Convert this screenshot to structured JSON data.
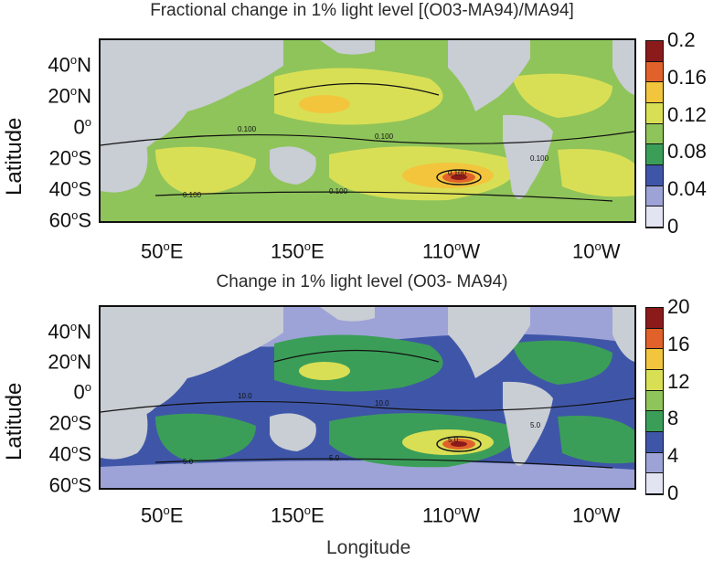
{
  "panels": [
    {
      "title": "Fractional change in 1% light level [(O03-MA94)/MA94]",
      "colorbar_labels": [
        "0.2",
        "0.16",
        "0.12",
        "0.08",
        "0.04",
        "0"
      ],
      "contour_labels": [
        "0.100",
        "0.100",
        "0.100",
        "0.100",
        "0.100",
        "0.100"
      ]
    },
    {
      "title": "Change in 1% light level (O03- MA94)",
      "colorbar_labels": [
        "20",
        "16",
        "12",
        "8",
        "4",
        "0"
      ],
      "contour_labels": [
        "10.0",
        "10.0",
        "5.0",
        "5.0",
        "5.0",
        "5.0"
      ]
    }
  ],
  "latitude_ticks": [
    {
      "num": "40",
      "hemi": "N"
    },
    {
      "num": "20",
      "hemi": "N"
    },
    {
      "num": "0",
      "hemi": ""
    },
    {
      "num": "20",
      "hemi": "S"
    },
    {
      "num": "40",
      "hemi": "S"
    },
    {
      "num": "60",
      "hemi": "S"
    }
  ],
  "longitude_ticks": [
    {
      "num": "50",
      "hemi": "E"
    },
    {
      "num": "150",
      "hemi": "E"
    },
    {
      "num": "110",
      "hemi": "W"
    },
    {
      "num": "10",
      "hemi": "W"
    }
  ],
  "degree_symbol": "o",
  "y_axis_title": "Latitude",
  "x_axis_title": "Longitude",
  "colors": {
    "land": "#c9cdd4",
    "scale": [
      "#8b1a1a",
      "#e0622a",
      "#f2c53d",
      "#d9df55",
      "#8fc45a",
      "#3b9e58",
      "#3f56a8",
      "#9da3d6",
      "#e3e4f2"
    ]
  }
}
